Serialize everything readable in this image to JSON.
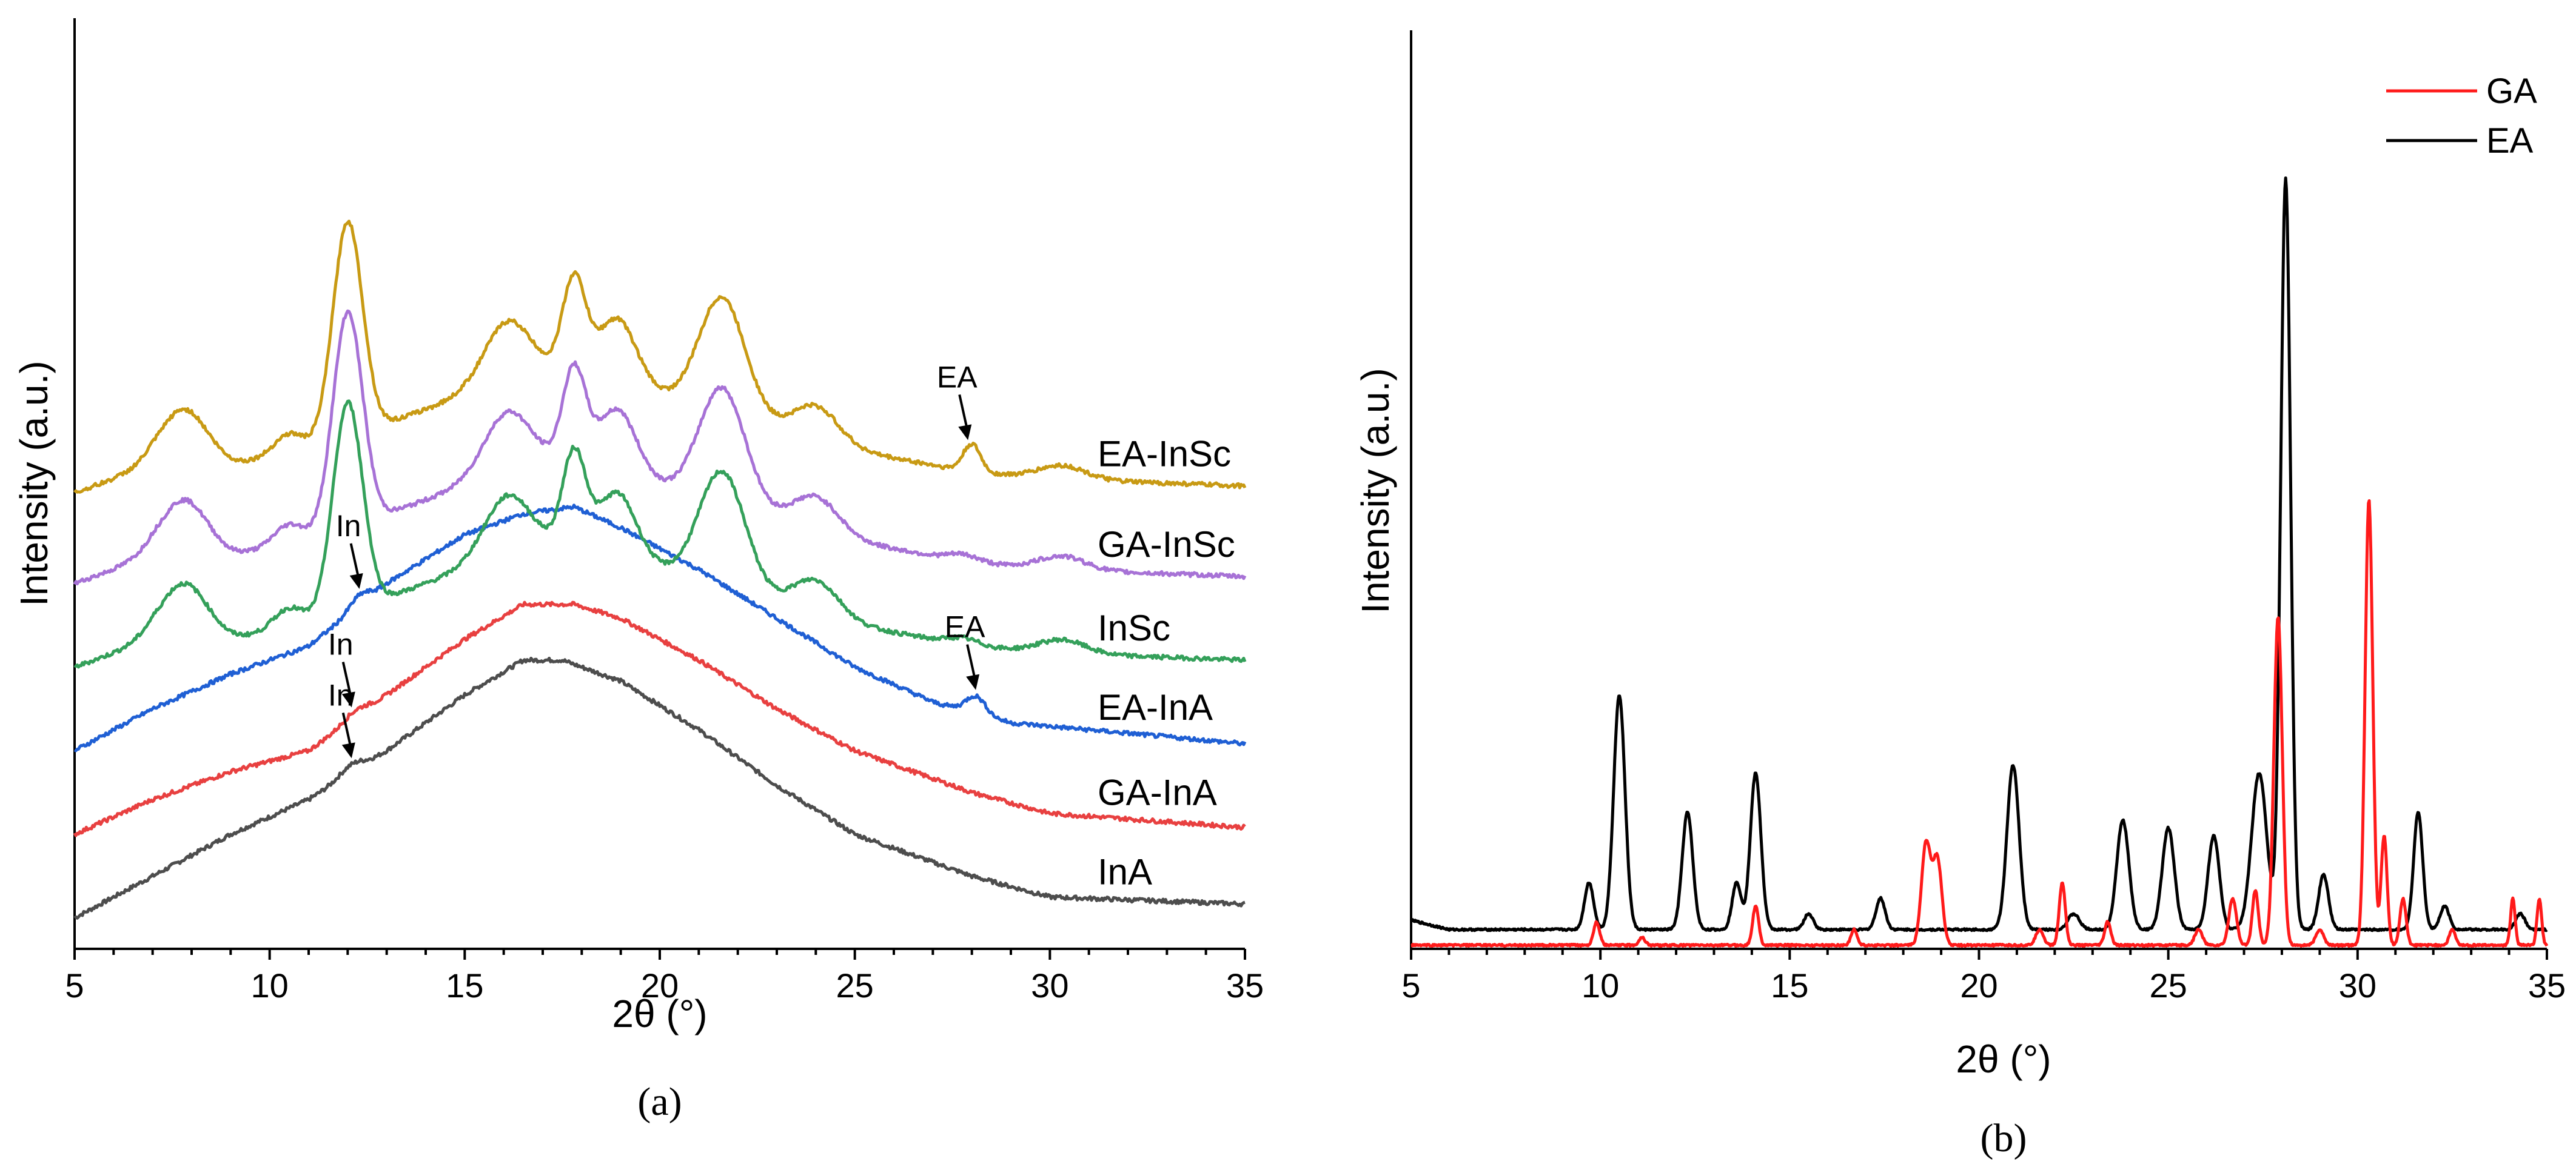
{
  "chart_data": [
    {
      "panel": "(a)",
      "type": "line",
      "xlabel": "2θ (°)",
      "ylabel": "Intensity (a.u.)",
      "xlim": [
        5,
        35
      ],
      "xticks": [
        "5",
        "10",
        "15",
        "20",
        "25",
        "30",
        "35"
      ],
      "ylim": [
        0,
        100
      ],
      "series": [
        {
          "name": "InA",
          "color": "#4d4d4d",
          "offset": 0,
          "baseline": [
            [
              5,
              0
            ],
            [
              7,
              6
            ],
            [
              9,
              12
            ],
            [
              11,
              17
            ],
            [
              13,
              24
            ],
            [
              15,
              32
            ],
            [
              16.5,
              37
            ],
            [
              17.5,
              37
            ],
            [
              19,
              34
            ],
            [
              21,
              27
            ],
            [
              23,
              19
            ],
            [
              25,
              12
            ],
            [
              28,
              6
            ],
            [
              30,
              3
            ],
            [
              35,
              2
            ]
          ],
          "peaks": [
            [
              12.1,
              1.2,
              0.3
            ]
          ]
        },
        {
          "name": "GA-InA",
          "color": "#e84040",
          "offset": 12,
          "baseline": [
            [
              5,
              0
            ],
            [
              7,
              5
            ],
            [
              9,
              9
            ],
            [
              11,
              12
            ],
            [
              13,
              20
            ],
            [
              15,
              28
            ],
            [
              16.5,
              33
            ],
            [
              17.8,
              33
            ],
            [
              19,
              31
            ],
            [
              21,
              25
            ],
            [
              23,
              18
            ],
            [
              25,
              12
            ],
            [
              28,
              6
            ],
            [
              30,
              3
            ],
            [
              35,
              1
            ]
          ],
          "peaks": [
            [
              12.2,
              1.0,
              0.3
            ]
          ]
        },
        {
          "name": "EA-InA",
          "color": "#1f5fd4",
          "offset": 24,
          "baseline": [
            [
              5,
              0
            ],
            [
              7,
              6
            ],
            [
              9,
              11
            ],
            [
              11,
              15
            ],
            [
              13,
              24
            ],
            [
              15,
              31
            ],
            [
              16.5,
              34
            ],
            [
              17.8,
              35
            ],
            [
              19,
              32
            ],
            [
              21,
              26
            ],
            [
              23,
              19
            ],
            [
              25,
              12
            ],
            [
              27,
              7
            ],
            [
              29,
              4
            ],
            [
              35,
              1
            ]
          ],
          "peaks": [
            [
              12.3,
              1.5,
              0.25
            ],
            [
              28.1,
              2.5,
              0.25
            ]
          ]
        },
        {
          "name": "InSc",
          "color": "#34a05a",
          "offset": 36,
          "baseline": [
            [
              5,
              0
            ],
            [
              7,
              4
            ],
            [
              9,
              4
            ],
            [
              11,
              6
            ],
            [
              13,
              10
            ],
            [
              15,
              14
            ],
            [
              17,
              17
            ],
            [
              19,
              16
            ],
            [
              21,
              12
            ],
            [
              23,
              9
            ],
            [
              25,
              6
            ],
            [
              28,
              3
            ],
            [
              30,
              2
            ],
            [
              35,
              1
            ]
          ],
          "peaks": [
            [
              7.8,
              8,
              0.6
            ],
            [
              10.5,
              3,
              0.4
            ],
            [
              12.0,
              30,
              0.38
            ],
            [
              16.1,
              9,
              0.6
            ],
            [
              17.8,
              14,
              0.3
            ],
            [
              18.9,
              9,
              0.5
            ],
            [
              21.6,
              17,
              0.6
            ],
            [
              24.0,
              5,
              0.6
            ],
            [
              27.8,
              1,
              0.4
            ],
            [
              30.3,
              2,
              0.6
            ]
          ]
        },
        {
          "name": "GA-InSc",
          "color": "#a772d6",
          "offset": 48,
          "baseline": [
            [
              5,
              0
            ],
            [
              7,
              4
            ],
            [
              9,
              4
            ],
            [
              11,
              6
            ],
            [
              13,
              10
            ],
            [
              15,
              14
            ],
            [
              17,
              17
            ],
            [
              19,
              16
            ],
            [
              21,
              12
            ],
            [
              23,
              9
            ],
            [
              25,
              6
            ],
            [
              28,
              3
            ],
            [
              30,
              2
            ],
            [
              35,
              1
            ]
          ],
          "peaks": [
            [
              7.8,
              8,
              0.6
            ],
            [
              10.5,
              3,
              0.4
            ],
            [
              12.0,
              31,
              0.38
            ],
            [
              16.1,
              9,
              0.6
            ],
            [
              17.8,
              14,
              0.3
            ],
            [
              18.9,
              9,
              0.5
            ],
            [
              21.6,
              17,
              0.6
            ],
            [
              24.0,
              5,
              0.6
            ],
            [
              27.8,
              1,
              0.4
            ],
            [
              30.3,
              2,
              0.6
            ]
          ]
        },
        {
          "name": "EA-InSc",
          "color": "#c89a14",
          "offset": 61,
          "baseline": [
            [
              5,
              0
            ],
            [
              7,
              4
            ],
            [
              9,
              4
            ],
            [
              11,
              6
            ],
            [
              13,
              10
            ],
            [
              15,
              14
            ],
            [
              17,
              17
            ],
            [
              19,
              16
            ],
            [
              21,
              12
            ],
            [
              23,
              9
            ],
            [
              25,
              6
            ],
            [
              28,
              3
            ],
            [
              30,
              2
            ],
            [
              35,
              1
            ]
          ],
          "peaks": [
            [
              7.8,
              8,
              0.6
            ],
            [
              10.5,
              3,
              0.4
            ],
            [
              12.0,
              31,
              0.38
            ],
            [
              16.1,
              9,
              0.6
            ],
            [
              17.8,
              14,
              0.3
            ],
            [
              18.9,
              9,
              0.5
            ],
            [
              21.6,
              17,
              0.6
            ],
            [
              24.0,
              5,
              0.6
            ],
            [
              28.0,
              4,
              0.22
            ],
            [
              30.3,
              2,
              0.6
            ]
          ]
        }
      ],
      "annotations": [
        {
          "text": "EA",
          "series": "EA-InSc",
          "x": 27.9
        },
        {
          "text": "In",
          "series": "EA-InA",
          "x": 12.3
        },
        {
          "text": "EA",
          "series": "EA-InA",
          "x": 28.1
        },
        {
          "text": "In",
          "series": "GA-InA",
          "x": 12.1
        },
        {
          "text": "In",
          "series": "InA",
          "x": 12.1
        }
      ],
      "caption": "(a)"
    },
    {
      "panel": "(b)",
      "type": "line",
      "xlabel": "2θ (°)",
      "ylabel": "Intensity (a.u.)",
      "xlim": [
        5,
        35
      ],
      "xticks": [
        "5",
        "10",
        "15",
        "20",
        "25",
        "30",
        "35"
      ],
      "ylim": [
        0,
        100
      ],
      "legend": [
        {
          "name": "GA",
          "color": "#ff1a1a"
        },
        {
          "name": "EA",
          "color": "#000000"
        }
      ],
      "series": [
        {
          "name": "EA",
          "color": "#000000",
          "base": 2,
          "peaks": [
            [
              9.7,
              6,
              0.12
            ],
            [
              10.5,
              30,
              0.15
            ],
            [
              12.3,
              15,
              0.14
            ],
            [
              13.6,
              6,
              0.12
            ],
            [
              14.1,
              20,
              0.14
            ],
            [
              15.5,
              2,
              0.12
            ],
            [
              17.4,
              4,
              0.12
            ],
            [
              20.9,
              21,
              0.16
            ],
            [
              22.5,
              2,
              0.15
            ],
            [
              23.8,
              14,
              0.16
            ],
            [
              25.0,
              13,
              0.16
            ],
            [
              26.2,
              12,
              0.15
            ],
            [
              27.4,
              20,
              0.2
            ],
            [
              28.1,
              96,
              0.13
            ],
            [
              29.1,
              7,
              0.13
            ],
            [
              31.6,
              15,
              0.12
            ],
            [
              32.3,
              3,
              0.12
            ],
            [
              34.3,
              2,
              0.12
            ]
          ]
        },
        {
          "name": "GA",
          "color": "#ff1a1a",
          "base": 0,
          "peaks": [
            [
              9.9,
              3,
              0.08
            ],
            [
              11.1,
              1,
              0.08
            ],
            [
              14.1,
              5,
              0.08
            ],
            [
              16.7,
              2,
              0.08
            ],
            [
              18.6,
              13,
              0.12
            ],
            [
              18.9,
              11,
              0.12
            ],
            [
              21.6,
              2,
              0.1
            ],
            [
              22.2,
              8,
              0.08
            ],
            [
              23.4,
              3,
              0.08
            ],
            [
              25.8,
              2,
              0.1
            ],
            [
              26.7,
              6,
              0.1
            ],
            [
              27.3,
              7,
              0.08
            ],
            [
              27.9,
              42,
              0.11
            ],
            [
              29.0,
              2,
              0.1
            ],
            [
              30.3,
              57,
              0.1
            ],
            [
              30.7,
              14,
              0.08
            ],
            [
              31.2,
              6,
              0.08
            ],
            [
              32.5,
              2,
              0.08
            ],
            [
              34.1,
              6,
              0.06
            ],
            [
              34.8,
              6,
              0.06
            ]
          ]
        }
      ],
      "caption": "(b)"
    }
  ]
}
